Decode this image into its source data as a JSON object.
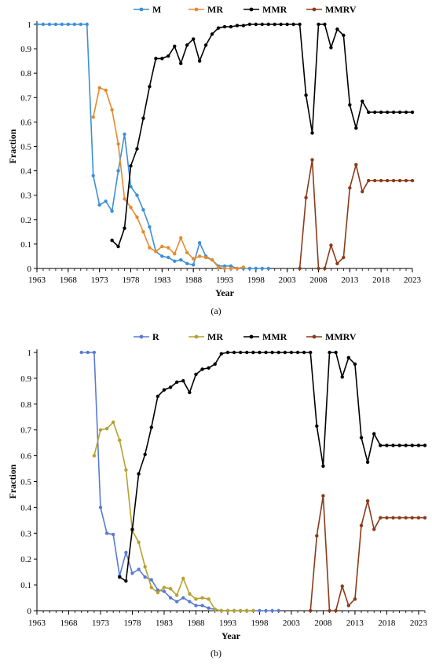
{
  "chart_data": [
    {
      "type": "line",
      "panel_label": "(a)",
      "xlabel": "Year",
      "ylabel": "Fraction",
      "xlim": [
        1963,
        2023
      ],
      "ylim": [
        0,
        1
      ],
      "x_ticks": [
        1963,
        1968,
        1973,
        1978,
        1983,
        1988,
        1993,
        1998,
        2003,
        2008,
        2013,
        2018,
        2023
      ],
      "y_ticks": [
        "0",
        "0.1",
        "0.2",
        "0.3",
        "0.4",
        "0.5",
        "0.6",
        "0.7",
        "0.8",
        "0.9",
        "1"
      ],
      "legend_position": "top",
      "series": [
        {
          "name": "M",
          "color": "#3d8fd6",
          "points": [
            [
              1963,
              1
            ],
            [
              1964,
              1
            ],
            [
              1965,
              1
            ],
            [
              1966,
              1
            ],
            [
              1967,
              1
            ],
            [
              1968,
              1
            ],
            [
              1969,
              1
            ],
            [
              1970,
              1
            ],
            [
              1971,
              1
            ],
            [
              1972,
              0.38
            ],
            [
              1973,
              0.26
            ],
            [
              1974,
              0.275
            ],
            [
              1975,
              0.235
            ],
            [
              1976,
              0.4
            ],
            [
              1977,
              0.55
            ],
            [
              1978,
              0.335
            ],
            [
              1979,
              0.3
            ],
            [
              1980,
              0.24
            ],
            [
              1981,
              0.17
            ],
            [
              1982,
              0.07
            ],
            [
              1983,
              0.05
            ],
            [
              1984,
              0.045
            ],
            [
              1985,
              0.03
            ],
            [
              1986,
              0.035
            ],
            [
              1987,
              0.02
            ],
            [
              1988,
              0.015
            ],
            [
              1989,
              0.105
            ],
            [
              1990,
              0.05
            ],
            [
              1991,
              0.035
            ],
            [
              1992,
              0.01
            ],
            [
              1993,
              0.01
            ],
            [
              1994,
              0.01
            ],
            [
              1995,
              0
            ],
            [
              1996,
              0
            ],
            [
              1997,
              0
            ],
            [
              1998,
              0
            ],
            [
              1999,
              0
            ],
            [
              2000,
              0
            ]
          ]
        },
        {
          "name": "MR",
          "color": "#e58a2e",
          "points": [
            [
              1972,
              0.62
            ],
            [
              1973,
              0.74
            ],
            [
              1974,
              0.73
            ],
            [
              1975,
              0.65
            ],
            [
              1976,
              0.51
            ],
            [
              1977,
              0.285
            ],
            [
              1978,
              0.25
            ],
            [
              1979,
              0.21
            ],
            [
              1980,
              0.15
            ],
            [
              1981,
              0.085
            ],
            [
              1982,
              0.07
            ],
            [
              1983,
              0.09
            ],
            [
              1984,
              0.085
            ],
            [
              1985,
              0.06
            ],
            [
              1986,
              0.125
            ],
            [
              1987,
              0.065
            ],
            [
              1988,
              0.04
            ],
            [
              1989,
              0.05
            ],
            [
              1990,
              0.045
            ],
            [
              1991,
              0.035
            ],
            [
              1992,
              0.005
            ],
            [
              1993,
              0
            ],
            [
              1994,
              0
            ],
            [
              1995,
              0
            ],
            [
              1996,
              0.005
            ]
          ]
        },
        {
          "name": "MMR",
          "color": "#000000",
          "points": [
            [
              1975,
              0.115
            ],
            [
              1976,
              0.09
            ],
            [
              1977,
              0.165
            ],
            [
              1978,
              0.42
            ],
            [
              1979,
              0.49
            ],
            [
              1980,
              0.615
            ],
            [
              1981,
              0.745
            ],
            [
              1982,
              0.86
            ],
            [
              1983,
              0.86
            ],
            [
              1984,
              0.87
            ],
            [
              1985,
              0.91
            ],
            [
              1986,
              0.84
            ],
            [
              1987,
              0.915
            ],
            [
              1988,
              0.94
            ],
            [
              1989,
              0.85
            ],
            [
              1990,
              0.915
            ],
            [
              1991,
              0.96
            ],
            [
              1992,
              0.985
            ],
            [
              1993,
              0.99
            ],
            [
              1994,
              0.99
            ],
            [
              1995,
              0.995
            ],
            [
              1996,
              0.995
            ],
            [
              1997,
              1
            ],
            [
              1998,
              1
            ],
            [
              1999,
              1
            ],
            [
              2000,
              1
            ],
            [
              2001,
              1
            ],
            [
              2002,
              1
            ],
            [
              2003,
              1
            ],
            [
              2004,
              1
            ],
            [
              2005,
              1
            ],
            [
              2006,
              0.71
            ],
            [
              2007,
              0.555
            ],
            [
              2008,
              1
            ],
            [
              2009,
              1
            ],
            [
              2010,
              0.905
            ],
            [
              2011,
              0.98
            ],
            [
              2012,
              0.955
            ],
            [
              2013,
              0.67
            ],
            [
              2014,
              0.575
            ],
            [
              2015,
              0.685
            ],
            [
              2016,
              0.64
            ],
            [
              2017,
              0.64
            ],
            [
              2018,
              0.64
            ],
            [
              2019,
              0.64
            ],
            [
              2020,
              0.64
            ],
            [
              2021,
              0.64
            ],
            [
              2022,
              0.64
            ],
            [
              2023,
              0.64
            ]
          ]
        },
        {
          "name": "MMRV",
          "color": "#8b3a1a",
          "points": [
            [
              2005,
              0
            ],
            [
              2006,
              0.29
            ],
            [
              2007,
              0.445
            ],
            [
              2008,
              0
            ],
            [
              2009,
              0
            ],
            [
              2010,
              0.095
            ],
            [
              2011,
              0.02
            ],
            [
              2012,
              0.045
            ],
            [
              2013,
              0.33
            ],
            [
              2014,
              0.425
            ],
            [
              2015,
              0.315
            ],
            [
              2016,
              0.36
            ],
            [
              2017,
              0.36
            ],
            [
              2018,
              0.36
            ],
            [
              2019,
              0.36
            ],
            [
              2020,
              0.36
            ],
            [
              2021,
              0.36
            ],
            [
              2022,
              0.36
            ],
            [
              2023,
              0.36
            ]
          ]
        }
      ]
    },
    {
      "type": "line",
      "panel_label": "(b)",
      "xlabel": "Year",
      "ylabel": "Fraction",
      "xlim": [
        1963,
        2023
      ],
      "ylim": [
        0,
        1
      ],
      "x_ticks": [
        1963,
        1968,
        1973,
        1978,
        1983,
        1988,
        1993,
        1998,
        2003,
        2008,
        2013,
        2018,
        2023
      ],
      "y_ticks": [
        "0",
        "0.1",
        "0.2",
        "0.3",
        "0.4",
        "0.5",
        "0.6",
        "0.7",
        "0.8",
        "0.9",
        "1"
      ],
      "legend_position": "top",
      "series": [
        {
          "name": "R",
          "color": "#5a7bd0",
          "points": [
            [
              1970,
              1
            ],
            [
              1971,
              1
            ],
            [
              1972,
              1
            ],
            [
              1973,
              0.4
            ],
            [
              1974,
              0.3
            ],
            [
              1975,
              0.295
            ],
            [
              1976,
              0.135
            ],
            [
              1977,
              0.225
            ],
            [
              1978,
              0.145
            ],
            [
              1979,
              0.16
            ],
            [
              1980,
              0.13
            ],
            [
              1981,
              0.12
            ],
            [
              1982,
              0.08
            ],
            [
              1983,
              0.075
            ],
            [
              1984,
              0.05
            ],
            [
              1985,
              0.035
            ],
            [
              1986,
              0.05
            ],
            [
              1987,
              0.035
            ],
            [
              1988,
              0.02
            ],
            [
              1989,
              0.02
            ],
            [
              1990,
              0.01
            ],
            [
              1991,
              0.005
            ],
            [
              1992,
              0
            ],
            [
              1993,
              0
            ],
            [
              1994,
              0
            ],
            [
              1995,
              0
            ],
            [
              1996,
              0
            ],
            [
              1997,
              0
            ],
            [
              1998,
              0
            ],
            [
              1999,
              0
            ],
            [
              2000,
              0
            ],
            [
              2001,
              0
            ]
          ]
        },
        {
          "name": "MR",
          "color": "#b5a12f",
          "points": [
            [
              1972,
              0.6
            ],
            [
              1973,
              0.7
            ],
            [
              1974,
              0.705
            ],
            [
              1975,
              0.73
            ],
            [
              1976,
              0.66
            ],
            [
              1977,
              0.545
            ],
            [
              1978,
              0.31
            ],
            [
              1979,
              0.265
            ],
            [
              1980,
              0.17
            ],
            [
              1981,
              0.09
            ],
            [
              1982,
              0.07
            ],
            [
              1983,
              0.09
            ],
            [
              1984,
              0.085
            ],
            [
              1985,
              0.06
            ],
            [
              1986,
              0.125
            ],
            [
              1987,
              0.065
            ],
            [
              1988,
              0.045
            ],
            [
              1989,
              0.05
            ],
            [
              1990,
              0.045
            ],
            [
              1991,
              0.005
            ],
            [
              1992,
              0
            ],
            [
              1993,
              0
            ],
            [
              1994,
              0
            ],
            [
              1995,
              0
            ],
            [
              1996,
              0
            ],
            [
              1997,
              0
            ]
          ]
        },
        {
          "name": "MMR",
          "color": "#000000",
          "points": [
            [
              1976,
              0.13
            ],
            [
              1977,
              0.115
            ],
            [
              1978,
              0.315
            ],
            [
              1979,
              0.53
            ],
            [
              1980,
              0.605
            ],
            [
              1981,
              0.71
            ],
            [
              1982,
              0.83
            ],
            [
              1983,
              0.855
            ],
            [
              1984,
              0.865
            ],
            [
              1985,
              0.885
            ],
            [
              1986,
              0.89
            ],
            [
              1987,
              0.845
            ],
            [
              1988,
              0.915
            ],
            [
              1989,
              0.935
            ],
            [
              1990,
              0.94
            ],
            [
              1991,
              0.955
            ],
            [
              1992,
              0.995
            ],
            [
              1993,
              1
            ],
            [
              1994,
              1
            ],
            [
              1995,
              1
            ],
            [
              1996,
              1
            ],
            [
              1997,
              1
            ],
            [
              1998,
              1
            ],
            [
              1999,
              1
            ],
            [
              2000,
              1
            ],
            [
              2001,
              1
            ],
            [
              2002,
              1
            ],
            [
              2003,
              1
            ],
            [
              2004,
              1
            ],
            [
              2005,
              1
            ],
            [
              2006,
              1
            ],
            [
              2007,
              0.715
            ],
            [
              2008,
              0.56
            ],
            [
              2009,
              1
            ],
            [
              2010,
              1
            ],
            [
              2011,
              0.905
            ],
            [
              2012,
              0.98
            ],
            [
              2013,
              0.955
            ],
            [
              2014,
              0.67
            ],
            [
              2015,
              0.575
            ],
            [
              2016,
              0.685
            ],
            [
              2017,
              0.64
            ],
            [
              2018,
              0.64
            ],
            [
              2019,
              0.64
            ],
            [
              2020,
              0.64
            ],
            [
              2021,
              0.64
            ],
            [
              2022,
              0.64
            ],
            [
              2023,
              0.64
            ],
            [
              2024,
              0.64
            ]
          ]
        },
        {
          "name": "MMRV",
          "color": "#8b3a1a",
          "points": [
            [
              2006,
              0
            ],
            [
              2007,
              0.29
            ],
            [
              2008,
              0.445
            ],
            [
              2009,
              0
            ],
            [
              2010,
              0
            ],
            [
              2011,
              0.095
            ],
            [
              2012,
              0.02
            ],
            [
              2013,
              0.045
            ],
            [
              2014,
              0.33
            ],
            [
              2015,
              0.425
            ],
            [
              2016,
              0.315
            ],
            [
              2017,
              0.36
            ],
            [
              2018,
              0.36
            ],
            [
              2019,
              0.36
            ],
            [
              2020,
              0.36
            ],
            [
              2021,
              0.36
            ],
            [
              2022,
              0.36
            ],
            [
              2023,
              0.36
            ],
            [
              2024,
              0.36
            ]
          ]
        }
      ]
    }
  ]
}
